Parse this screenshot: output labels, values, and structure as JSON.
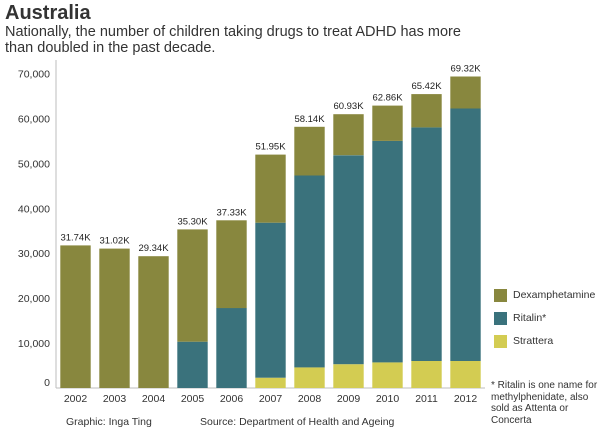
{
  "header": {
    "title": "Australia",
    "subtitle": "Nationally, the number of children taking drugs to treat ADHD has more than doubled in the past decade."
  },
  "footer": {
    "credit": "Graphic: Inga Ting",
    "source": "Source: Department of Health and Ageing",
    "footnote": "* Ritalin is one name for methylphenidate, also sold as Attenta or Concerta"
  },
  "chart_data": {
    "type": "bar",
    "stacked": true,
    "categories": [
      "2002",
      "2003",
      "2004",
      "2005",
      "2006",
      "2007",
      "2008",
      "2009",
      "2010",
      "2011",
      "2012"
    ],
    "series": [
      {
        "name": "Strattera",
        "color": "#d3cc52",
        "values": [
          0,
          0,
          0,
          0,
          0,
          2300,
          4600,
          5300,
          5700,
          6000,
          6000
        ]
      },
      {
        "name": "Ritalin*",
        "color": "#3a727c",
        "values": [
          0,
          0,
          0,
          10300,
          17800,
          34500,
          42700,
          46500,
          49300,
          52000,
          56200
        ]
      },
      {
        "name": "Dexamphetamine",
        "color": "#88873e",
        "values": [
          31740,
          31020,
          29340,
          25000,
          19530,
          15150,
          10840,
          9130,
          7860,
          7420,
          7120
        ]
      }
    ],
    "totals_labels": [
      "31.74K",
      "31.02K",
      "29.34K",
      "35.30K",
      "37.33K",
      "51.95K",
      "58.14K",
      "60.93K",
      "62.86K",
      "65.42K",
      "69.32K"
    ],
    "legend_order": [
      "Dexamphetamine",
      "Ritalin*",
      "Strattera"
    ],
    "legend_position": "right",
    "y_ticks": [
      0,
      10000,
      20000,
      30000,
      40000,
      50000,
      60000,
      70000
    ],
    "y_tick_labels": [
      "0",
      "10,000",
      "20,000",
      "30,000",
      "40,000",
      "50,000",
      "60,000",
      "70,000"
    ],
    "ylim": [
      0,
      73000
    ],
    "grid": false
  }
}
